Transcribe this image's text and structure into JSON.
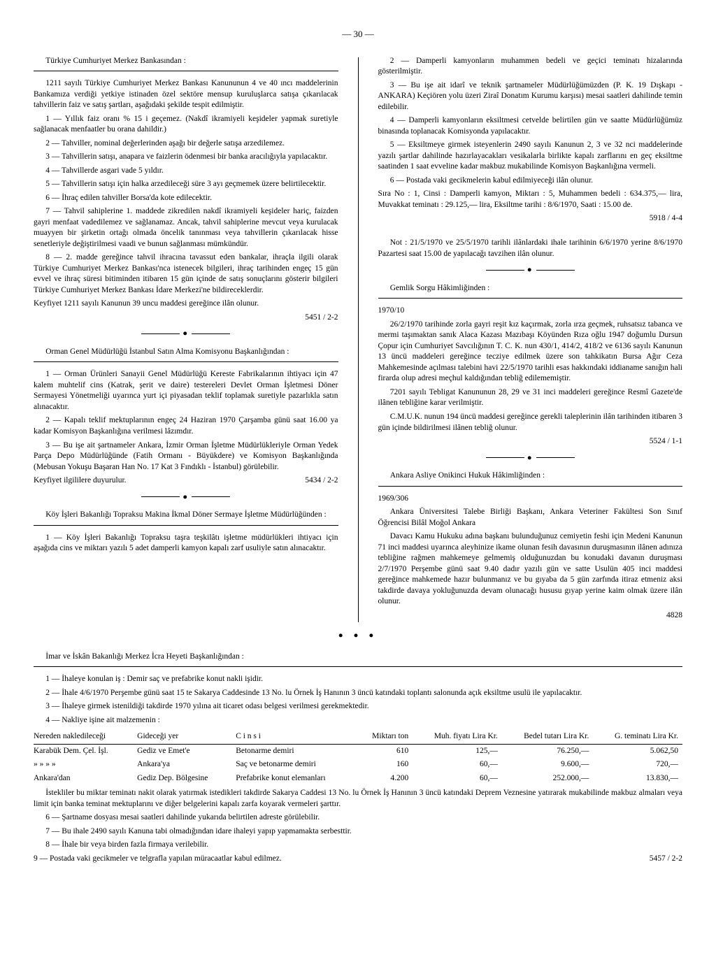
{
  "pageNumber": "— 30 —",
  "col1": {
    "block1": {
      "heading": "Türkiye Cumhuriyet Merkez Bankasından :",
      "paras": [
        "1211 sayılı Türkiye Cumhuriyet Merkez Bankası Kanununun 4 ve 40 ıncı maddelerinin Bankamıza verdiği yetkiye istinaden özel sektöre mensup kuruluşlarca satışa çıkarılacak tahvillerin faiz ve satış şartları, aşağıdaki şekilde tespit edilmiştir.",
        "1 — Yıllık faiz oranı % 15 i geçemez. (Nakdî ikramiyeli keşideler yapmak suretiyle sağlanacak menfaatler bu orana dahildir.)",
        "2 — Tahviller, nominal değerlerinden aşağı bir değerle satışa arzedilemez.",
        "3 — Tahvillerin satışı, anapara ve faizlerin ödenmesi bir banka aracılığıyla yapılacaktır.",
        "4 — Tahvillerde asgari vade 5 yıldır.",
        "5 — Tahvillerin satışı için halka arzedileceği süre 3 ayı geçmemek üzere belirtilecektir.",
        "6 — İhraç edilen tahviller Borsa'da kote edilecektir.",
        "7 — Tahvil sahiplerine 1. maddede zikredilen nakdî ikramiyeli keşideler hariç, faizden gayri menfaat vadedilemez ve sağlanamaz. Ancak, tahvil sahiplerine mevcut veya kurulacak muayyen bir şirketin ortağı olmada öncelik tanınması veya tahvillerin çıkarılacak hisse senetleriyle değiştirilmesi vaadi ve bunun sağlanması mümkündür.",
        "8 — 2. madde gereğince tahvil ihracına tavassut eden bankalar, ihraçla ilgili olarak Türkiye Cumhuriyet Merkez Bankası'nca istenecek bilgileri, ihraç tarihinden engeç 15 gün evvel ve ihraç süresi bitiminden itibaren 15 gün içinde de satış sonuçlarını gösterir bilgileri Türkiye Cumhuriyet Merkez Bankası İdare Merkezi'ne bildireceklerdir."
      ],
      "tail": "Keyfiyet 1211 sayılı Kanunun 39 uncu maddesi gereğince ilân olunur.",
      "ref": "5451 / 2-2"
    },
    "block2": {
      "heading": "Orman Genel Müdürlüğü İstanbul Satın Alma Komisyonu Başkanlığından :",
      "paras": [
        "1 — Orman Ürünleri Sanayii Genel Müdürlüğü Kereste Fabrikalarının ihtiyacı için 47 kalem muhtelif cins (Katrak, şerit ve daire) testereleri Devlet Orman İşletmesi Döner Sermayesi Yönetmeliği uyarınca yurt içi piyasadan teklif toplamak suretiyle pazarlıkla satın alınacaktır.",
        "2 — Kapalı teklif mektuplarının engeç 24 Haziran 1970 Çarşamba günü saat 16.00 ya kadar Komisyon Başkanlığına verilmesi lâzımdır.",
        "3 — Bu işe ait şartnameler Ankara, İzmir Orman İşletme Müdürlükleriyle Orman Yedek Parça Depo Müdürlüğünde (Fatih Ormanı - Büyükdere) ve Komisyon Başkanlığında (Mebusan Yokuşu Başaran Han No. 17 Kat 3 Fındıklı - İstanbul) görülebilir."
      ],
      "tail": "Keyfiyet ilgililere duyurulur.",
      "ref": "5434 / 2-2"
    },
    "block3": {
      "heading": "Köy İşleri Bakanlığı Topraksu Makina İkmal Döner Sermaye İşletme Müdürlüğünden :",
      "paras": [
        "1 — Köy İşleri Bakanlığı Topraksu taşra teşkilâtı işletme müdürlükleri ihtiyacı için aşağıda cins ve miktarı yazılı 5 adet damperli kamyon kapalı zarf usuliyle satın alınacaktır."
      ]
    }
  },
  "col2": {
    "block3cont": {
      "paras": [
        "2 — Damperli kamyonların muhammen bedeli ve geçici teminatı hizalarında gösterilmiştir.",
        "3 — Bu işe ait idarî ve teknik şartnameler Müdürlüğümüzden (P. K. 19 Dışkapı - ANKARA) Keçiören yolu üzeri Ziraî Donatım Kurumu karşısı) mesai saatleri dahilinde temin edilebilir.",
        "4 — Damperli kamyonların eksiltmesi cetvelde belirtilen gün ve saatte Müdürlüğümüz binasında toplanacak Komisyonda yapılacaktır.",
        "5 — Eksiltmeye girmek isteyenlerin 2490 sayılı Kanunun 2, 3 ve 32 nci maddelerinde yazılı şartlar dahilinde hazırlayacakları vesikalarla birlikte kapalı zarflarını en geç eksiltme saatinden 1 saat evveline kadar makbuz mukabilinde Komisyon Başkanlığına vermeli.",
        "6 — Postada vaki gecikmelerin kabul edilmiyeceği ilân olunur."
      ],
      "tail": "Sıra No : 1, Cinsi : Damperli kamyon, Miktarı : 5, Muhammen bedeli : 634.375,— lira, Muvakkat teminatı : 29.125,— lira, Eksiltme tarihi : 8/6/1970, Saati : 15.00 de.",
      "ref": "5918 / 4-4",
      "note": "Not : 21/5/1970 ve 25/5/1970 tarihli ilânlardaki ihale tarihinin 6/6/1970 yerine 8/6/1970 Pazartesi saat 15.00 de yapılacağı tavzihen ilân olunur."
    },
    "block4": {
      "heading": "Gemlik Sorgu Hâkimliğinden :",
      "caseNo": "1970/10",
      "paras": [
        "26/2/1970 tarihinde zorla gayri reşit kız kaçırmak, zorla ırza geçmek, ruhsatsız tabanca ve mermi taşımaktan sanık Alaca Kazası Mazıbaşı Köyünden Rıza oğlu 1947 doğumlu Dursun Çopur için Cumhuriyet Savcılığının T. C. K. nun 430/1, 414/2, 418/2 ve 6136 sayılı Kanunun 13 üncü maddeleri gereğince tecziye edilmek üzere son tahkikatın Bursa Ağır Ceza Mahkemesinde açılması talebini havi 22/5/1970 tarihli esas hakkındaki iddianame sanığın hali firarda olup adresi meçhul kaldığından tebliğ edilememiştir.",
        "7201 sayılı Tebligat Kanununun 28, 29 ve 31 inci maddeleri gereğince Resmî Gazete'de ilânen tebliğine karar verilmiştir.",
        "C.M.U.K. nunun 194 üncü maddesi gereğince gerekli taleplerinin ilân tarihinden itibaren 3 gün içinde bildirilmesi ilânen tebliğ olunur."
      ],
      "ref": "5524 / 1-1"
    },
    "block5": {
      "heading": "Ankara Asliye Onikinci Hukuk Hâkimliğinden :",
      "caseNo": "1969/306",
      "paras": [
        "Ankara Üniversitesi Talebe Birliği Başkanı, Ankara Veteriner Fakültesi Son Sınıf Öğrencisi Bilâl Moğol Ankara",
        "Davacı Kamu Hukuku adına başkanı bulunduğunuz cemiyetin feshi için Medeni Kanunun 71 inci maddesi uyarınca aleyhinize ikame olunan fesih davasının duruşmasının ilânen adınıza tebliğine rağmen mahkemeye gelmemiş olduğunuzdan bu konudaki davanın duruşması 2/7/1970 Perşembe günü saat 9.40 dadır yazılı gün ve satte Usulün 405 inci maddesi gereğince mahkemede hazır bulunmanız ve bu gıyaba da 5 gün zarfında itiraz etmeniz aksi takdirde davaya yokluğunuzda devam olunacağı hususu gıyap yerine kaim olmak üzere ilân olunur."
      ],
      "ref": "4828"
    }
  },
  "bottom": {
    "heading": "İmar ve İskân Bakanlığı Merkez İcra Heyeti Başkanlığından :",
    "preTable": [
      "1 — İhaleye konulan iş : Demir saç ve prefabrike konut nakli işidir.",
      "2 — İhale 4/6/1970 Perşembe günü saat 15 te Sakarya Caddesinde 13 No. lu Örnek İş Hanının 3 üncü katındaki toplantı salonunda açık eksiltme usulü ile yapılacaktır.",
      "3 — İhaleye girmek istenildiği takdirde 1970 yılına ait ticaret odası belgesi verilmesi gerekmektedir.",
      "4 — Nakliye işine ait malzemenin :"
    ],
    "table": {
      "headers": [
        "Nereden nakledileceği",
        "Gideceği yer",
        "C i n s i",
        "Miktarı ton",
        "Muh. fiyatı Lira Kr.",
        "Bedel tutarı Lira Kr.",
        "G. teminatı Lira Kr."
      ],
      "rows": [
        [
          "Karabük Dem. Çel. İşl.",
          "Gediz ve Emet'e",
          "Betonarme demiri",
          "610",
          "125,—",
          "76.250,—",
          "5.062,50"
        ],
        [
          "»      »    »    »",
          "Ankara'ya",
          "Saç ve betonarme demiri",
          "160",
          "60,—",
          "9.600,—",
          "720,—"
        ],
        [
          "Ankara'dan",
          "Gediz Dep. Bölgesine",
          "Prefabrike konut elemanları",
          "4.200",
          "60,—",
          "252.000,—",
          "13.830,—"
        ]
      ]
    },
    "postTable": [
      "İstekliler bu miktar teminatı nakit olarak yatırmak istedikleri takdirde Sakarya Caddesi 13 No. lu Örnek İş Hanının 3 üncü katındaki Deprem Veznesine yatırarak mukabilinde makbuz almaları veya limit için banka teminat mektuplarını ve diğer belgelerini kapalı zarfa koyarak vermeleri şarttır.",
      "6 — Şartname dosyası mesai saatleri dahilinde yukarıda belirtilen adreste görülebilir.",
      "7 — Bu ihale 2490 sayılı Kanuna tabi olmadığından idare ihaleyi yapıp yapmamakta serbesttir.",
      "8 — İhale bir veya birden fazla firmaya verilebilir."
    ],
    "tail": "9 — Postada vaki gecikmeler ve telgrafla yapılan müracaatlar kabul edilmez.",
    "ref": "5457 / 2-2"
  }
}
